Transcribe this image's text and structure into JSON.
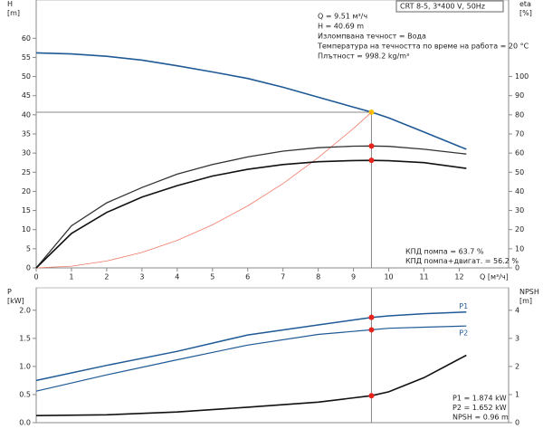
{
  "chart_data": [
    {
      "type": "line",
      "title": "CRT 8-5, 3*400 V, 50Hz",
      "y_label": "H\n[m]",
      "y2_label": "eta\n[%]",
      "x_label": "Q [м³/ч]",
      "xlim": [
        0,
        13.4
      ],
      "xticks": [
        0,
        1,
        2,
        3,
        4,
        5,
        6,
        7,
        8,
        9,
        10,
        11,
        12
      ],
      "ylim": [
        0,
        70
      ],
      "yticks": [
        0,
        5,
        10,
        15,
        20,
        25,
        30,
        35,
        40,
        45,
        50,
        55,
        60
      ],
      "y2lim": [
        0,
        140
      ],
      "y2ticks": [
        0,
        10,
        20,
        30,
        40,
        50,
        60,
        70,
        80,
        90,
        100
      ],
      "marker_x": 9.51,
      "marker_y": 40.69,
      "info": [
        "Q = 9.51 м³/ч",
        "H = 40.69 m",
        "Изломпвана течност = Вода",
        "Температура на течността по време на работа = 20 °C",
        "Плътност = 998.2 kg/m³"
      ],
      "notes": [
        "КПД помпа = 63.7 %",
        "КПД помпа+двигат. = 56.2 %"
      ],
      "series": [
        {
          "color": "#1f5a96",
          "line_width": 1.6,
          "marker_color": "#f5c400",
          "x": [
            0,
            1,
            2,
            3,
            4,
            5,
            6,
            7,
            8,
            9,
            9.51,
            10,
            11,
            12.2
          ],
          "values": [
            56.2,
            55.9,
            55.3,
            54.3,
            52.8,
            51.2,
            49.5,
            47.2,
            44.6,
            42,
            40.69,
            39.2,
            35.5,
            31
          ]
        },
        {
          "color": "#f07a66",
          "line_width": 0.8,
          "x": [
            0,
            1,
            2,
            3,
            4,
            5,
            6,
            7,
            8,
            9,
            9.51
          ],
          "values": [
            0,
            0.45,
            1.8,
            4.05,
            7.2,
            11.25,
            16.2,
            22.05,
            28.8,
            36.45,
            40.69
          ]
        },
        {
          "color": "#333333",
          "line_width": 1.3,
          "axis": "y2",
          "marker_color": "#e8231c",
          "x": [
            0,
            1,
            2,
            3,
            4,
            5,
            6,
            7,
            8,
            9,
            9.51,
            10,
            11,
            12.2
          ],
          "values": [
            0,
            22,
            34,
            42,
            49,
            54,
            58,
            61,
            62.8,
            63.6,
            63.7,
            63.5,
            62,
            59.5
          ]
        },
        {
          "color": "#111111",
          "line_width": 1.6,
          "axis": "y2",
          "marker_color": "#e8231c",
          "x": [
            0,
            1,
            2,
            3,
            4,
            5,
            6,
            7,
            8,
            9,
            9.51,
            10,
            11,
            12.2
          ],
          "values": [
            0,
            18,
            29,
            37,
            43,
            48,
            51.5,
            54,
            55.5,
            56.1,
            56.2,
            56,
            55,
            52
          ]
        }
      ]
    },
    {
      "type": "line",
      "y_label": "P\n[kW]",
      "y2_label": "NPSH\n[m]",
      "xlim": [
        0,
        13.4
      ],
      "ylim": [
        0,
        2.4
      ],
      "yticks": [
        {
          "value": 0,
          "label": "0.0"
        },
        0.5,
        {
          "value": 1,
          "label": "1.0"
        },
        1.5,
        {
          "value": 2,
          "label": "2.0"
        }
      ],
      "y2lim": [
        0,
        4.8
      ],
      "y2ticks": [
        0,
        1,
        2,
        3,
        4
      ],
      "marker_x": 9.51,
      "notes": [
        "P1 = 1.874 kW",
        "P2 = 1.652 kW",
        "NPSH = 0.96 m"
      ],
      "series": [
        {
          "name": "P1",
          "color": "#1f5a96",
          "line_width": 1.5,
          "marker_color": "#e8231c",
          "x": [
            0,
            2,
            4,
            6,
            8,
            9.51,
            10,
            11,
            12.2
          ],
          "values": [
            0.75,
            1.02,
            1.27,
            1.56,
            1.74,
            1.874,
            1.9,
            1.94,
            1.97
          ]
        },
        {
          "name": "P2",
          "color": "#1f5a96",
          "line_width": 1.2,
          "marker_color": "#e8231c",
          "x": [
            0,
            2,
            4,
            6,
            8,
            9.51,
            10,
            11,
            12.2
          ],
          "values": [
            0.56,
            0.85,
            1.12,
            1.38,
            1.57,
            1.652,
            1.68,
            1.7,
            1.72
          ]
        },
        {
          "color": "#111111",
          "line_width": 1.6,
          "axis": "y2",
          "marker_color": "#e8231c",
          "x": [
            0,
            2,
            4,
            6,
            8,
            9.51,
            10,
            11,
            12.2
          ],
          "values": [
            0.25,
            0.28,
            0.38,
            0.55,
            0.73,
            0.96,
            1.1,
            1.6,
            2.4
          ]
        }
      ]
    }
  ]
}
